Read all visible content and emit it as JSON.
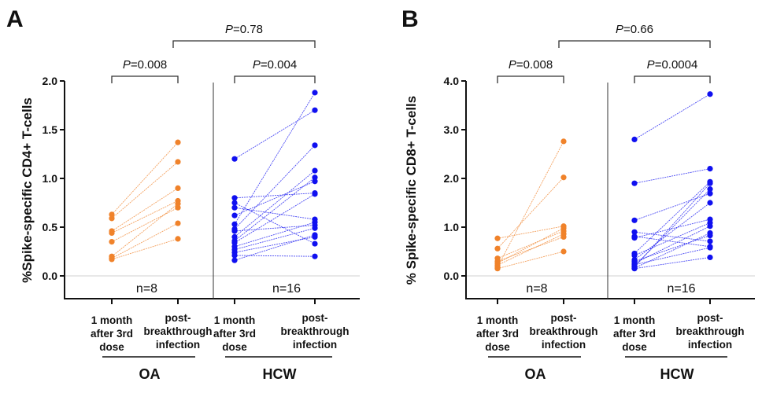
{
  "chart_data": [
    {
      "type": "line",
      "panel": "A",
      "title": "",
      "ylabel": "%Spike-specific CD4+ T-cells",
      "xlabel": "",
      "ylim": [
        0,
        2.0
      ],
      "yticks": [
        "0.0",
        "0.5",
        "1.0",
        "1.5",
        "2.0"
      ],
      "ytick_values": [
        0,
        0.5,
        1.0,
        1.5,
        2.0
      ],
      "grid": false,
      "categories": [
        "1 month after 3rd dose",
        "post-breakthrough infection",
        "1 month after 3rd dose",
        "post-breakthrough infection"
      ],
      "category_lines": [
        [
          "1 month",
          "after 3rd",
          "dose"
        ],
        [
          "post-",
          "breakthrough",
          "infection"
        ],
        [
          "1 month",
          "after 3rd",
          "dose"
        ],
        [
          "post-",
          "breakthrough",
          "infection"
        ]
      ],
      "groups": [
        {
          "name": "OA",
          "n_label": "n=8",
          "color": "#f0822a",
          "pvalue": "0.008",
          "pairs": [
            [
              0.63,
              1.37
            ],
            [
              0.59,
              1.17
            ],
            [
              0.46,
              0.9
            ],
            [
              0.44,
              0.77
            ],
            [
              0.35,
              0.7
            ],
            [
              0.2,
              0.74
            ],
            [
              0.18,
              0.54
            ],
            [
              0.17,
              0.38
            ]
          ]
        },
        {
          "name": "HCW",
          "n_label": "n=16",
          "color": "#1010f0",
          "pvalue": "0.004",
          "pairs": [
            [
              1.2,
              1.7
            ],
            [
              0.8,
              0.85
            ],
            [
              0.75,
              0.33
            ],
            [
              0.7,
              0.58
            ],
            [
              0.62,
              0.97
            ],
            [
              0.53,
              1.88
            ],
            [
              0.48,
              1.34
            ],
            [
              0.46,
              0.52
            ],
            [
              0.4,
              1.08
            ],
            [
              0.36,
              1.01
            ],
            [
              0.34,
              0.84
            ],
            [
              0.3,
              0.55
            ],
            [
              0.27,
              0.49
            ],
            [
              0.24,
              0.4
            ],
            [
              0.21,
              0.2
            ],
            [
              0.16,
              0.42
            ]
          ]
        }
      ],
      "comparisons": [
        {
          "label_prefix": "P",
          "label_value": "=0.008",
          "between": [
            "OA 1 month after 3rd dose",
            "OA post-breakthrough infection"
          ]
        },
        {
          "label_prefix": "P",
          "label_value": "=0.004",
          "between": [
            "HCW 1 month after 3rd dose",
            "HCW post-breakthrough infection"
          ]
        },
        {
          "label_prefix": "P",
          "label_value": "=0.78",
          "between": [
            "OA post-breakthrough infection",
            "HCW post-breakthrough infection"
          ]
        }
      ]
    },
    {
      "type": "line",
      "panel": "B",
      "title": "",
      "ylabel": "% Spike-specific CD8+ T-cells",
      "xlabel": "",
      "ylim": [
        0,
        4.0
      ],
      "yticks": [
        "0.0",
        "1.0",
        "2.0",
        "3.0",
        "4.0"
      ],
      "ytick_values": [
        0,
        1.0,
        2.0,
        3.0,
        4.0
      ],
      "grid": false,
      "categories": [
        "1 month after 3rd dose",
        "post-breakthrough infection",
        "1 month after 3rd dose",
        "post-breakthrough infection"
      ],
      "category_lines": [
        [
          "1 month",
          "after 3rd",
          "dose"
        ],
        [
          "post-",
          "breakthrough",
          "infection"
        ],
        [
          "1 month",
          "after 3rd",
          "dose"
        ],
        [
          "post-",
          "breakthrough",
          "infection"
        ]
      ],
      "groups": [
        {
          "name": "OA",
          "n_label": "n=8",
          "color": "#f0822a",
          "pvalue": "0.008",
          "pairs": [
            [
              0.77,
              1.02
            ],
            [
              0.56,
              2.02
            ],
            [
              0.36,
              0.92
            ],
            [
              0.3,
              0.8
            ],
            [
              0.26,
              0.98
            ],
            [
              0.22,
              0.86
            ],
            [
              0.18,
              2.76
            ],
            [
              0.15,
              0.5
            ]
          ]
        },
        {
          "name": "HCW",
          "n_label": "n=16",
          "color": "#1010f0",
          "pvalue": "0.0004",
          "pairs": [
            [
              2.8,
              3.73
            ],
            [
              1.9,
              2.2
            ],
            [
              1.14,
              1.69
            ],
            [
              0.9,
              0.71
            ],
            [
              0.81,
              0.6
            ],
            [
              0.78,
              1.16
            ],
            [
              0.46,
              1.93
            ],
            [
              0.42,
              1.09
            ],
            [
              0.33,
              1.5
            ],
            [
              0.3,
              0.83
            ],
            [
              0.26,
              1.02
            ],
            [
              0.23,
              0.58
            ],
            [
              0.2,
              1.78
            ],
            [
              0.18,
              1.9
            ],
            [
              0.15,
              0.38
            ],
            [
              0.16,
              0.88
            ]
          ]
        }
      ],
      "comparisons": [
        {
          "label_prefix": "P",
          "label_value": "=0.008",
          "between": [
            "OA 1 month after 3rd dose",
            "OA post-breakthrough infection"
          ]
        },
        {
          "label_prefix": "P",
          "label_value": "=0.0004",
          "between": [
            "HCW 1 month after 3rd dose",
            "HCW post-breakthrough infection"
          ]
        },
        {
          "label_prefix": "P",
          "label_value": "=0.66",
          "between": [
            "OA post-breakthrough infection",
            "HCW post-breakthrough infection"
          ]
        }
      ]
    }
  ]
}
